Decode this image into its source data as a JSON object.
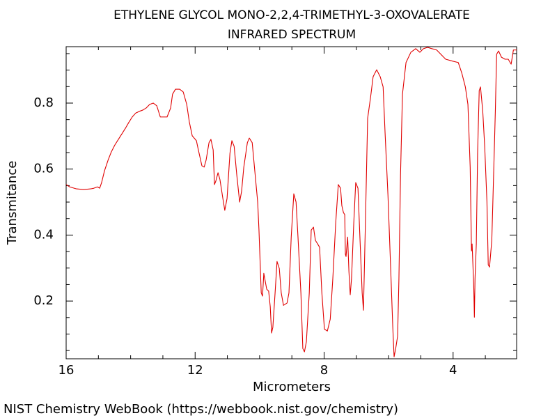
{
  "chart_data": {
    "type": "line",
    "title": "ETHYLENE GLYCOL MONO-2,2,4-TRIMETHYL-3-OXOVALERATE",
    "subtitle": "INFRARED SPECTRUM",
    "x_label": "Micrometers",
    "y_label": "Transmitance",
    "source": "NIST Chemistry WebBook (https://webbook.nist.gov/chemistry)",
    "xlim": [
      16,
      2.03
    ],
    "ylim": [
      0.025,
      0.971
    ],
    "xticks": [
      16,
      12,
      8,
      4
    ],
    "yticks": [
      0.2,
      0.4,
      0.6,
      0.8
    ],
    "xminorticks": [
      15,
      14,
      13,
      11,
      10,
      9,
      7,
      6,
      5,
      3
    ],
    "yminorticks": [
      0.05,
      0.1,
      0.15,
      0.25,
      0.3,
      0.35,
      0.45,
      0.5,
      0.55,
      0.65,
      0.7,
      0.75,
      0.85,
      0.9,
      0.95
    ],
    "grid": false,
    "x": [
      16.0,
      15.89,
      15.68,
      15.46,
      15.24,
      15.14,
      15.03,
      14.96,
      14.9,
      14.81,
      14.7,
      14.6,
      14.49,
      14.38,
      14.27,
      14.16,
      14.06,
      13.95,
      13.84,
      13.73,
      13.62,
      13.52,
      13.41,
      13.3,
      13.19,
      13.08,
      12.98,
      12.87,
      12.76,
      12.7,
      12.61,
      12.48,
      12.37,
      12.26,
      12.18,
      12.09,
      11.96,
      11.9,
      11.79,
      11.72,
      11.66,
      11.57,
      11.51,
      11.44,
      11.4,
      11.36,
      11.29,
      11.23,
      11.14,
      11.08,
      11.01,
      10.92,
      10.86,
      10.79,
      10.71,
      10.62,
      10.56,
      10.49,
      10.38,
      10.32,
      10.23,
      10.15,
      10.06,
      10.02,
      9.95,
      9.91,
      9.87,
      9.82,
      9.78,
      9.72,
      9.67,
      9.63,
      9.59,
      9.52,
      9.46,
      9.39,
      9.33,
      9.26,
      9.15,
      9.09,
      9.02,
      8.94,
      8.87,
      8.81,
      8.72,
      8.66,
      8.61,
      8.55,
      8.46,
      8.4,
      8.33,
      8.27,
      8.2,
      8.14,
      8.07,
      7.99,
      7.9,
      7.81,
      7.73,
      7.64,
      7.56,
      7.49,
      7.45,
      7.4,
      7.36,
      7.34,
      7.32,
      7.27,
      7.23,
      7.19,
      7.15,
      7.08,
      7.02,
      6.95,
      6.89,
      6.82,
      6.78,
      6.71,
      6.65,
      6.56,
      6.48,
      6.37,
      6.26,
      6.17,
      6.11,
      6.02,
      5.94,
      5.87,
      5.83,
      5.78,
      5.72,
      5.68,
      5.63,
      5.57,
      5.46,
      5.31,
      5.16,
      5.03,
      4.92,
      4.79,
      4.66,
      4.51,
      4.38,
      4.23,
      4.01,
      3.84,
      3.73,
      3.62,
      3.54,
      3.47,
      3.43,
      3.41,
      3.36,
      3.34,
      3.32,
      3.28,
      3.24,
      3.19,
      3.15,
      3.08,
      3.02,
      2.95,
      2.91,
      2.87,
      2.8,
      2.74,
      2.69,
      2.65,
      2.59,
      2.5,
      2.39,
      2.29,
      2.2,
      2.13,
      2.03
    ],
    "series": [
      {
        "color": "#e00000",
        "values": [
          0.553,
          0.546,
          0.54,
          0.538,
          0.54,
          0.542,
          0.546,
          0.542,
          0.559,
          0.595,
          0.627,
          0.652,
          0.673,
          0.69,
          0.707,
          0.724,
          0.741,
          0.758,
          0.77,
          0.775,
          0.779,
          0.785,
          0.796,
          0.8,
          0.792,
          0.758,
          0.758,
          0.758,
          0.785,
          0.827,
          0.842,
          0.842,
          0.834,
          0.796,
          0.743,
          0.701,
          0.686,
          0.658,
          0.61,
          0.606,
          0.627,
          0.68,
          0.69,
          0.658,
          0.553,
          0.563,
          0.589,
          0.568,
          0.511,
          0.475,
          0.511,
          0.648,
          0.686,
          0.669,
          0.584,
          0.5,
          0.532,
          0.606,
          0.68,
          0.694,
          0.68,
          0.595,
          0.5,
          0.415,
          0.225,
          0.215,
          0.284,
          0.257,
          0.236,
          0.23,
          0.183,
          0.103,
          0.12,
          0.225,
          0.32,
          0.299,
          0.225,
          0.187,
          0.194,
          0.225,
          0.394,
          0.525,
          0.5,
          0.394,
          0.225,
          0.056,
          0.046,
          0.077,
          0.225,
          0.415,
          0.424,
          0.384,
          0.373,
          0.363,
          0.225,
          0.115,
          0.109,
          0.145,
          0.268,
          0.437,
          0.553,
          0.542,
          0.489,
          0.468,
          0.462,
          0.342,
          0.335,
          0.394,
          0.289,
          0.219,
          0.268,
          0.437,
          0.559,
          0.542,
          0.394,
          0.225,
          0.172,
          0.479,
          0.754,
          0.817,
          0.88,
          0.901,
          0.88,
          0.849,
          0.711,
          0.521,
          0.31,
          0.12,
          0.031,
          0.056,
          0.094,
          0.268,
          0.584,
          0.827,
          0.923,
          0.954,
          0.965,
          0.954,
          0.965,
          0.969,
          0.965,
          0.961,
          0.948,
          0.933,
          0.927,
          0.923,
          0.891,
          0.849,
          0.796,
          0.606,
          0.352,
          0.373,
          0.246,
          0.151,
          0.268,
          0.373,
          0.648,
          0.838,
          0.849,
          0.775,
          0.669,
          0.5,
          0.31,
          0.303,
          0.384,
          0.595,
          0.775,
          0.948,
          0.958,
          0.939,
          0.933,
          0.933,
          0.918,
          0.961,
          0.961
        ]
      }
    ]
  }
}
